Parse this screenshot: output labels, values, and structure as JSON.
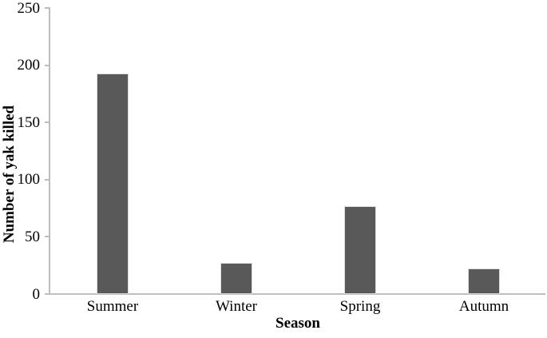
{
  "chart_data": {
    "type": "bar",
    "title": "",
    "categories": [
      "Summer",
      "Winter",
      "Spring",
      "Autumn"
    ],
    "values": [
      193,
      27,
      77,
      22
    ],
    "xlabel": "Season",
    "ylabel": "Number of yak killed",
    "ylim": [
      0,
      250
    ],
    "yticks": [
      0,
      50,
      100,
      150,
      200,
      250
    ],
    "grid": false,
    "legend": false,
    "bar_color": "#595959",
    "axis_color": "#bdbdbd",
    "text_color": "#000000",
    "background": "#ffffff"
  }
}
